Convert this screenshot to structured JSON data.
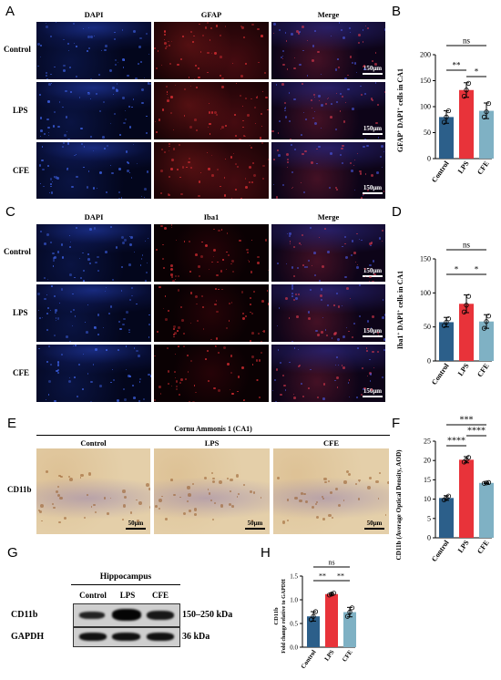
{
  "panel_letters": {
    "A": "A",
    "B": "B",
    "C": "C",
    "D": "D",
    "E": "E",
    "F": "F",
    "G": "G",
    "H": "H"
  },
  "fluor_headers": {
    "dapi": "DAPI",
    "gfap": "GFAP",
    "iba1": "Iba1",
    "merge": "Merge"
  },
  "groups": [
    "Control",
    "LPS",
    "CFE"
  ],
  "scalebars": {
    "fluor": "150μm",
    "ihc": "50μm"
  },
  "panel_e": {
    "title": "Cornu Ammonis 1 (CA1)",
    "row_label": "CD11b"
  },
  "panel_g": {
    "title": "Hippocampus",
    "proteins": [
      "CD11b",
      "GAPDH"
    ],
    "sizes": [
      "150–250 kDa",
      "36 kDa"
    ]
  },
  "colors": {
    "control": "#2c5f8a",
    "lps": "#e8333a",
    "cfe": "#7fb1c4"
  },
  "chart_data": [
    {
      "panel": "B",
      "type": "bar",
      "categories": [
        "Control",
        "LPS",
        "CFE"
      ],
      "values": [
        80,
        132,
        92
      ],
      "errors": [
        12,
        14,
        15
      ],
      "points": [
        [
          70,
          80,
          92
        ],
        [
          120,
          132,
          145
        ],
        [
          80,
          90,
          106
        ]
      ],
      "ylabel_main": "GFAP",
      "ylabel_sup1": "+",
      "ylabel_mid": " DAPI",
      "ylabel_sup2": "+",
      "ylabel_tail": " cells in CA1",
      "ylim": [
        0,
        200
      ],
      "yticks": [
        0,
        50,
        100,
        150,
        200
      ],
      "annotations": [
        "ns",
        "**",
        "*"
      ]
    },
    {
      "panel": "D",
      "type": "bar",
      "categories": [
        "Control",
        "LPS",
        "CFE"
      ],
      "values": [
        57,
        84,
        58
      ],
      "errors": [
        7,
        13,
        10
      ],
      "points": [
        [
          52,
          57,
          62
        ],
        [
          72,
          82,
          95
        ],
        [
          48,
          58,
          66
        ]
      ],
      "ylabel_main": "Iba1",
      "ylabel_sup1": "+",
      "ylabel_mid": " DAPI",
      "ylabel_sup2": "+",
      "ylabel_tail": " cells in CA1",
      "ylim": [
        0,
        150
      ],
      "yticks": [
        0,
        50,
        100,
        150
      ],
      "annotations": [
        "ns",
        "*",
        "*"
      ]
    },
    {
      "panel": "F",
      "type": "bar",
      "categories": [
        "Control",
        "LPS",
        "CFE"
      ],
      "values": [
        10.3,
        20.2,
        14.2
      ],
      "errors": [
        0.6,
        0.8,
        0.15
      ],
      "points": [
        [
          9.8,
          10.3,
          10.8
        ],
        [
          19.6,
          20.2,
          20.8
        ],
        [
          14.1,
          14.2,
          14.3
        ]
      ],
      "ylabel": "CD11b (Average Optical Density, AOD)",
      "ylim": [
        0,
        25
      ],
      "yticks": [
        0,
        5,
        10,
        15,
        20,
        25
      ],
      "annotations": [
        "***",
        "****",
        "****"
      ]
    },
    {
      "panel": "H",
      "type": "bar",
      "categories": [
        "Control",
        "LPS",
        "CFE"
      ],
      "values": [
        0.65,
        1.12,
        0.74
      ],
      "errors": [
        0.1,
        0.02,
        0.1
      ],
      "points": [
        [
          0.58,
          0.65,
          0.75
        ],
        [
          1.1,
          1.12,
          1.14
        ],
        [
          0.65,
          0.74,
          0.83
        ]
      ],
      "ylabel_line1": "CD11b",
      "ylabel_line2": "Fold change relative to GAPDH",
      "ylim": [
        0,
        1.5
      ],
      "yticks": [
        0.0,
        0.5,
        1.0,
        1.5
      ],
      "annotations": [
        "ns",
        "**",
        "**"
      ]
    }
  ]
}
